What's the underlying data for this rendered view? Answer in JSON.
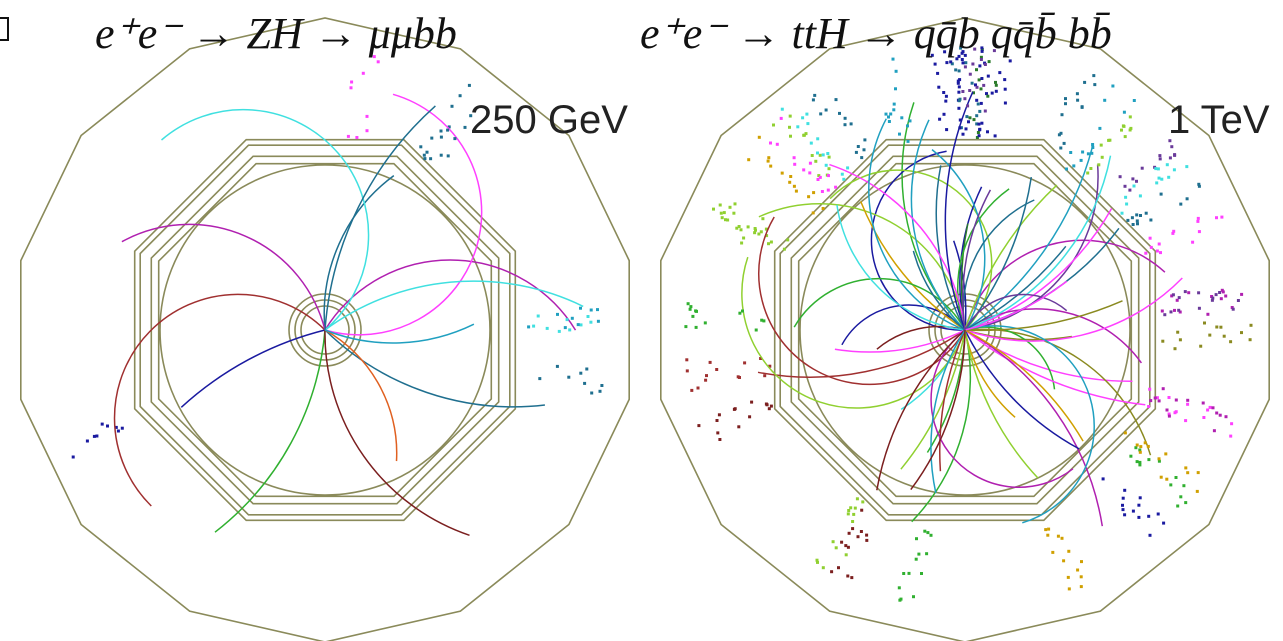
{
  "panels": [
    {
      "title": "e⁺e⁻ → ZH → μμbb",
      "energy": "250 GeV"
    },
    {
      "title": "e⁺e⁻ → ttH → qq̄b qq̄b̄ bb̄",
      "energy": "1 TeV"
    }
  ]
}
